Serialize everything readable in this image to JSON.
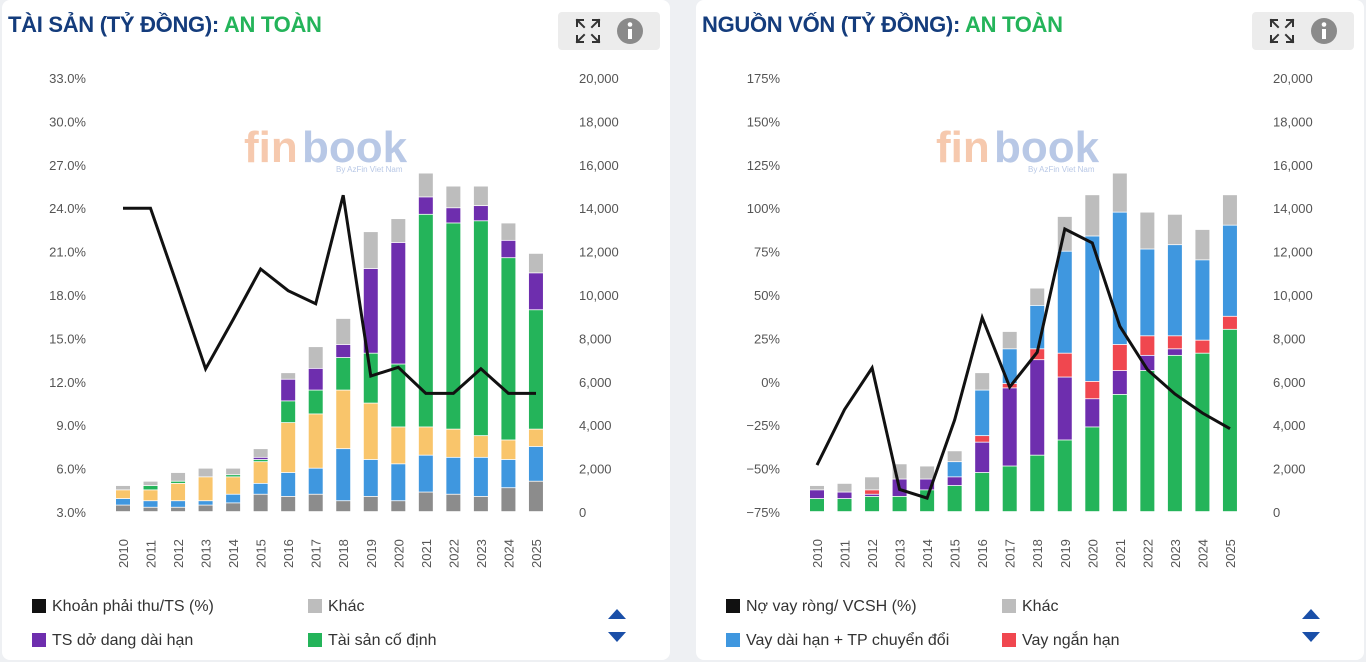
{
  "panels": [
    {
      "title_main": "TÀI SẢN (TỶ ĐỒNG): ",
      "title_accent": "AN TOÀN",
      "legend": [
        {
          "label": "Khoản phải thu/TS (%)",
          "color": "#111111"
        },
        {
          "label": "Khác",
          "color": "#bdbdbd"
        },
        {
          "label": "TS dở dang dài hạn",
          "color": "#6e2eae"
        },
        {
          "label": "Tài sản cố định",
          "color": "#24b45a"
        }
      ]
    },
    {
      "title_main": "NGUỒN VỐN (TỶ ĐỒNG): ",
      "title_accent": "AN TOÀN",
      "legend": [
        {
          "label": "Nợ vay ròng/ VCSH (%)",
          "color": "#111111"
        },
        {
          "label": "Khác",
          "color": "#bdbdbd"
        },
        {
          "label": "Vay dài hạn + TP chuyển đổi",
          "color": "#3f97df"
        },
        {
          "label": "Vay ngắn hạn",
          "color": "#f0474f"
        }
      ]
    }
  ],
  "chart_data": [
    {
      "type": "bar",
      "stacked": true,
      "title": "TÀI SẢN (TỶ ĐỒNG): AN TOÀN",
      "categories": [
        "2010",
        "2011",
        "2012",
        "2013",
        "2014",
        "2015",
        "2016",
        "2017",
        "2018",
        "2019",
        "2020",
        "2021",
        "2022",
        "2023",
        "2024",
        "2025"
      ],
      "y_left": {
        "ticks": [
          "3.0%",
          "6.0%",
          "9.0%",
          "12.0%",
          "15.0%",
          "18.0%",
          "21.0%",
          "24.0%",
          "27.0%",
          "30.0%",
          "33.0%"
        ],
        "min": 3,
        "max": 33
      },
      "y_right": {
        "ticks": [
          "0",
          "2,000",
          "4,000",
          "6,000",
          "8,000",
          "10,000",
          "12,000",
          "14,000",
          "16,000",
          "18,000",
          "20,000"
        ],
        "min": 0,
        "max": 20000
      },
      "series": [
        {
          "name": "",
          "color": "#8c8c8c",
          "values": [
            300,
            200,
            200,
            300,
            400,
            800,
            700,
            800,
            500,
            700,
            500,
            900,
            800,
            700,
            1100,
            1400
          ]
        },
        {
          "name": "",
          "color": "#3f97df",
          "values": [
            300,
            300,
            300,
            200,
            400,
            500,
            1100,
            1200,
            2400,
            1700,
            1700,
            1700,
            1700,
            1800,
            1300,
            1600
          ]
        },
        {
          "name": "",
          "color": "#f9c56b",
          "values": [
            400,
            500,
            800,
            1100,
            800,
            1000,
            2300,
            2500,
            2700,
            2600,
            1700,
            1300,
            1300,
            1000,
            900,
            800
          ]
        },
        {
          "name": "Tài sản cố định",
          "color": "#24b45a",
          "values": [
            0,
            200,
            100,
            0,
            100,
            100,
            1000,
            1100,
            1500,
            2300,
            2900,
            9800,
            9500,
            9900,
            8400,
            5500
          ]
        },
        {
          "name": "TS dở dang dài hạn",
          "color": "#6e2eae",
          "values": [
            0,
            0,
            0,
            0,
            0,
            100,
            1000,
            1000,
            600,
            3900,
            5600,
            800,
            700,
            700,
            800,
            1700
          ]
        },
        {
          "name": "Khác",
          "color": "#bdbdbd",
          "values": [
            200,
            200,
            400,
            400,
            300,
            400,
            300,
            1000,
            1200,
            1700,
            1100,
            1100,
            1000,
            900,
            800,
            900
          ]
        }
      ],
      "line": {
        "name": "Khoản phải thu/TS (%)",
        "color": "#111111",
        "values": [
          24,
          24,
          18.5,
          12.9,
          16.3,
          19.8,
          18.3,
          17.4,
          24.9,
          12.4,
          13,
          11.2,
          11.2,
          12.9,
          11.2,
          11.2
        ]
      },
      "watermark": [
        "fin",
        "book",
        "By AzFin Viet Nam",
        "AzFin"
      ]
    },
    {
      "type": "bar",
      "stacked": true,
      "title": "NGUỒN VỐN (TỶ ĐỒNG): AN TOÀN",
      "categories": [
        "2010",
        "2011",
        "2012",
        "2013",
        "2014",
        "2015",
        "2016",
        "2017",
        "2018",
        "2019",
        "2020",
        "2021",
        "2022",
        "2023",
        "2024",
        "2025"
      ],
      "y_left": {
        "ticks": [
          "−75%",
          "−50%",
          "−25%",
          "0%",
          "25%",
          "50%",
          "75%",
          "100%",
          "125%",
          "150%",
          "175%"
        ],
        "min": -75,
        "max": 175
      },
      "y_right": {
        "ticks": [
          "0",
          "2,000",
          "4,000",
          "6,000",
          "8,000",
          "10,000",
          "12,000",
          "14,000",
          "16,000",
          "18,000",
          "20,000"
        ],
        "min": 0,
        "max": 20000
      },
      "series": [
        {
          "name": "",
          "color": "#24b45a",
          "values": [
            600,
            600,
            700,
            700,
            1000,
            1200,
            1800,
            2100,
            2600,
            3300,
            3900,
            5400,
            6500,
            7200,
            7300,
            8400
          ]
        },
        {
          "name": "",
          "color": "#6e2eae",
          "values": [
            400,
            300,
            100,
            800,
            500,
            400,
            1400,
            3600,
            4400,
            2900,
            1300,
            1100,
            700,
            300,
            0,
            0
          ]
        },
        {
          "name": "Vay ngắn hạn",
          "color": "#f0474f",
          "values": [
            0,
            0,
            200,
            0,
            0,
            0,
            300,
            200,
            500,
            1100,
            800,
            1200,
            900,
            600,
            600,
            600
          ]
        },
        {
          "name": "Vay dài hạn + TP chuyển đổi",
          "color": "#3f97df",
          "values": [
            0,
            0,
            0,
            0,
            0,
            700,
            2100,
            1600,
            2000,
            4700,
            6700,
            6100,
            4000,
            4200,
            3700,
            4200
          ]
        },
        {
          "name": "Khác",
          "color": "#bdbdbd",
          "values": [
            200,
            400,
            600,
            700,
            600,
            500,
            800,
            800,
            800,
            1600,
            1900,
            1800,
            1700,
            1400,
            1400,
            1400
          ]
        }
      ],
      "line": {
        "name": "Nợ vay ròng/ VCSH (%)",
        "color": "#111111",
        "values": [
          -48,
          -16,
          8,
          -62,
          -67,
          -22,
          37,
          -3,
          17,
          88,
          80,
          32,
          7,
          -7,
          -18,
          -27
        ]
      },
      "watermark": [
        "fin",
        "book",
        "By AzFin Viet Nam"
      ]
    }
  ]
}
